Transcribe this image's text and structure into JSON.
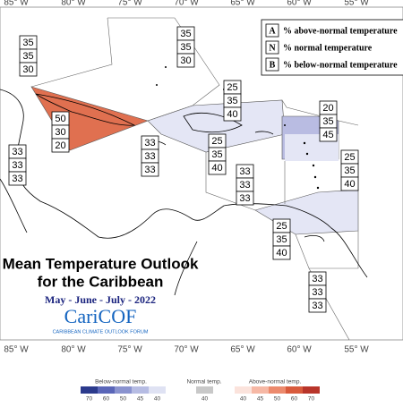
{
  "longitudes_top": [
    "85° W",
    "80° W",
    "75° W",
    "70° W",
    "65° W",
    "60° W",
    "55° W"
  ],
  "longitudes_bottom": [
    "85° W",
    "80° W",
    "75° W",
    "70° W",
    "65° W",
    "60° W",
    "55° W"
  ],
  "legend": [
    {
      "key": "A",
      "text": "% above-normal temperature"
    },
    {
      "key": "N",
      "text": "% normal temperature"
    },
    {
      "key": "B",
      "text": "% below-normal temperature"
    }
  ],
  "regions": [
    {
      "above": 35,
      "normal": 35,
      "below": 30
    },
    {
      "above": 35,
      "normal": 35,
      "below": 30
    },
    {
      "above": 50,
      "normal": 30,
      "below": 20
    },
    {
      "above": 33,
      "normal": 33,
      "below": 33
    },
    {
      "above": 25,
      "normal": 35,
      "below": 40
    },
    {
      "above": 25,
      "normal": 35,
      "below": 40
    },
    {
      "above": 20,
      "normal": 35,
      "below": 45
    },
    {
      "above": 25,
      "normal": 35,
      "below": 40
    },
    {
      "above": 33,
      "normal": 33,
      "below": 33
    },
    {
      "above": 25,
      "normal": 35,
      "below": 40
    },
    {
      "above": 33,
      "normal": 33,
      "below": 33
    },
    {
      "above": 33,
      "normal": 33,
      "below": 33
    }
  ],
  "title": {
    "line1": "Mean Temperature Outlook",
    "line2": "for the Caribbean",
    "period": "May - June - July - 2022"
  },
  "logo": {
    "name": "CariCOF",
    "subtitle": "CARIBBEAN CLIMATE OUTLOOK FORUM"
  },
  "colorbar": {
    "below_label": "Below-normal temp.",
    "normal_label": "Normal temp.",
    "above_label": "Above-normal temp.",
    "below_ticks": [
      70,
      60,
      50,
      45,
      40
    ],
    "normal_ticks": [
      40
    ],
    "above_ticks": [
      40,
      45,
      50,
      60,
      70
    ]
  }
}
